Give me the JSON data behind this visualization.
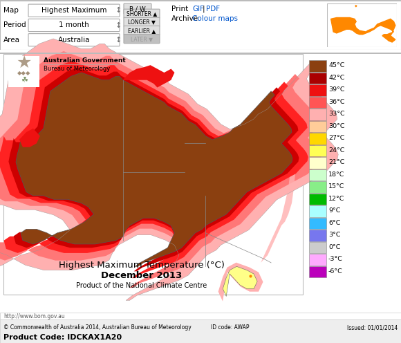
{
  "title_main": "Highest Maximum Temperature (°C)",
  "title_sub": "December 2013",
  "title_sub2": "Product of the National Climate Centre",
  "header_map_label": "Map",
  "header_map_value": "Highest Maximum",
  "header_period_label": "Period",
  "header_period_value": "1 month",
  "header_area_label": "Area",
  "header_area_value": "Australia",
  "header_bw": "B / W",
  "header_shorter": "SHORTER",
  "header_longer": "LONGER",
  "header_earlier": "EARLIER",
  "header_later": "LATER",
  "header_print": "Print",
  "header_archive": "Archive",
  "header_gif": "GIF",
  "header_pdf": "PDF",
  "header_colour_maps": "Colour maps",
  "footer_url": "http://www.bom.gov.au",
  "footer_copyright": "© Commonwealth of Australia 2014, Australian Bureau of Meteorology",
  "footer_id": "ID code: AWAP",
  "footer_issued": "Issued: 01/01/2014",
  "footer_product": "Product Code: IDCKAX1A20",
  "legend_temps": [
    45,
    42,
    39,
    36,
    33,
    30,
    27,
    24,
    21,
    18,
    15,
    12,
    9,
    6,
    3,
    0,
    -3,
    -6
  ],
  "legend_colors": [
    "#8B4010",
    "#AA0000",
    "#EE1111",
    "#FF5555",
    "#FFB0B0",
    "#FFCC99",
    "#FFD700",
    "#FFFF55",
    "#FFFFCC",
    "#CCFFCC",
    "#88EE88",
    "#00BB00",
    "#AAFFFF",
    "#33BBFF",
    "#7777EE",
    "#CCCCCC",
    "#FFAAFF",
    "#BB00BB"
  ],
  "bg_color": "#FFFFFF",
  "header_bg": "#F2F2F2",
  "aus_orange": "#FF8800",
  "link_color": "#0055CC",
  "sea_color": "#FFFFFF",
  "map_panel_bg": "#FFFFFF"
}
